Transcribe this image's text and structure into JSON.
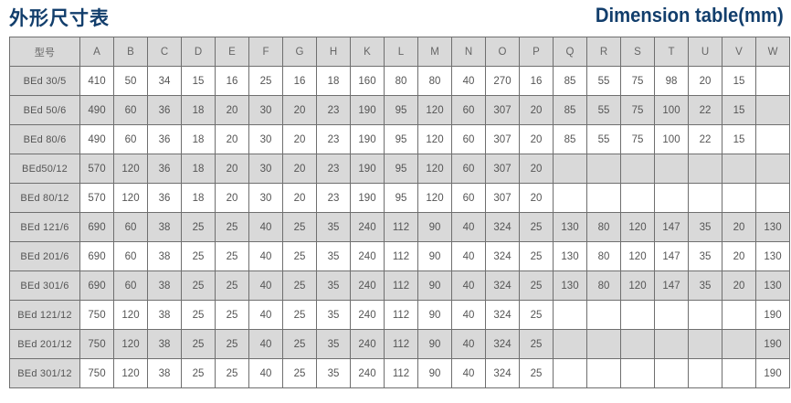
{
  "title_cn": "外形尺寸表",
  "title_en": "Dimension table(mm)",
  "colors": {
    "title": "#123e6c",
    "shade": "#d9d9d9",
    "border": "#6f6f6f"
  },
  "headers": [
    "型号",
    "A",
    "B",
    "C",
    "D",
    "E",
    "F",
    "G",
    "H",
    "K",
    "L",
    "M",
    "N",
    "O",
    "P",
    "Q",
    "R",
    "S",
    "T",
    "U",
    "V",
    "W"
  ],
  "rows": [
    [
      "BEd 30/5",
      "410",
      "50",
      "34",
      "15",
      "16",
      "25",
      "16",
      "18",
      "160",
      "80",
      "80",
      "40",
      "270",
      "16",
      "85",
      "55",
      "75",
      "98",
      "20",
      "15",
      ""
    ],
    [
      "BEd 50/6",
      "490",
      "60",
      "36",
      "18",
      "20",
      "30",
      "20",
      "23",
      "190",
      "95",
      "120",
      "60",
      "307",
      "20",
      "85",
      "55",
      "75",
      "100",
      "22",
      "15",
      ""
    ],
    [
      "BEd 80/6",
      "490",
      "60",
      "36",
      "18",
      "20",
      "30",
      "20",
      "23",
      "190",
      "95",
      "120",
      "60",
      "307",
      "20",
      "85",
      "55",
      "75",
      "100",
      "22",
      "15",
      ""
    ],
    [
      "BEd50/12",
      "570",
      "120",
      "36",
      "18",
      "20",
      "30",
      "20",
      "23",
      "190",
      "95",
      "120",
      "60",
      "307",
      "20",
      "",
      "",
      "",
      "",
      "",
      "",
      ""
    ],
    [
      "BEd 80/12",
      "570",
      "120",
      "36",
      "18",
      "20",
      "30",
      "20",
      "23",
      "190",
      "95",
      "120",
      "60",
      "307",
      "20",
      "",
      "",
      "",
      "",
      "",
      "",
      ""
    ],
    [
      "BEd 121/6",
      "690",
      "60",
      "38",
      "25",
      "25",
      "40",
      "25",
      "35",
      "240",
      "112",
      "90",
      "40",
      "324",
      "25",
      "130",
      "80",
      "120",
      "147",
      "35",
      "20",
      "130"
    ],
    [
      "BEd 201/6",
      "690",
      "60",
      "38",
      "25",
      "25",
      "40",
      "25",
      "35",
      "240",
      "112",
      "90",
      "40",
      "324",
      "25",
      "130",
      "80",
      "120",
      "147",
      "35",
      "20",
      "130"
    ],
    [
      "BEd 301/6",
      "690",
      "60",
      "38",
      "25",
      "25",
      "40",
      "25",
      "35",
      "240",
      "112",
      "90",
      "40",
      "324",
      "25",
      "130",
      "80",
      "120",
      "147",
      "35",
      "20",
      "130"
    ],
    [
      "BEd 121/12",
      "750",
      "120",
      "38",
      "25",
      "25",
      "40",
      "25",
      "35",
      "240",
      "112",
      "90",
      "40",
      "324",
      "25",
      "",
      "",
      "",
      "",
      "",
      "",
      "190"
    ],
    [
      "BEd 201/12",
      "750",
      "120",
      "38",
      "25",
      "25",
      "40",
      "25",
      "35",
      "240",
      "112",
      "90",
      "40",
      "324",
      "25",
      "",
      "",
      "",
      "",
      "",
      "",
      "190"
    ],
    [
      "BEd 301/12",
      "750",
      "120",
      "38",
      "25",
      "25",
      "40",
      "25",
      "35",
      "240",
      "112",
      "90",
      "40",
      "324",
      "25",
      "",
      "",
      "",
      "",
      "",
      "",
      "190"
    ]
  ]
}
